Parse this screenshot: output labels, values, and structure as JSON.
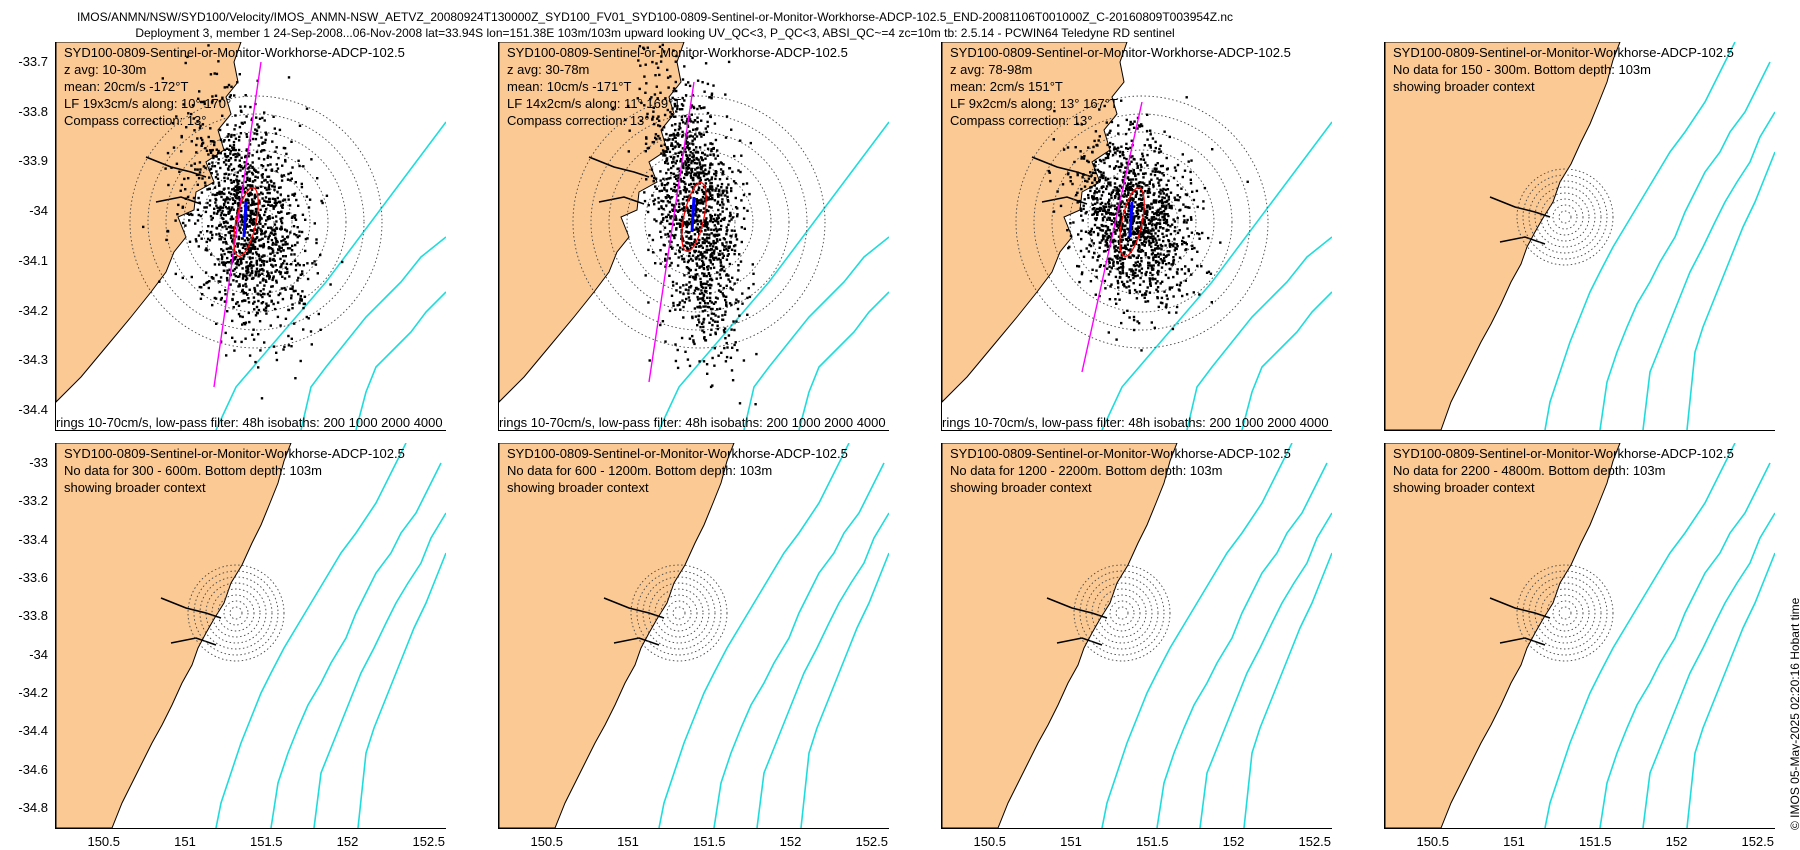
{
  "header": {
    "line1": "IMOS/ANMN/NSW/SYD100/Velocity/IMOS_ANMN-NSW_AETVZ_20080924T130000Z_SYD100_FV01_SYD100-0809-Sentinel-or-Monitor-Workhorse-ADCP-102.5_END-20081106T001000Z_C-20160809T003954Z.nc",
    "line2": "Deployment 3, member 1 24-Sep-2008...06-Nov-2008 lat=33.94S lon=151.38E 103m/103m upward looking UV_QC<3, P_QC<3, ABSI_QC~=4 zc=10m tb: 2.5.14 - PCWIN64 Teledyne RD sentinel"
  },
  "top_axis": {
    "yticks": [
      "-33.7",
      "-33.8",
      "-33.9",
      "-34",
      "-34.1",
      "-34.2",
      "-34.3",
      "-34.4"
    ],
    "yvalues": [
      -33.7,
      -33.8,
      -33.9,
      -34.0,
      -34.1,
      -34.2,
      -34.3,
      -34.4
    ]
  },
  "bottom_axis": {
    "yticks": [
      "-33",
      "-33.2",
      "-33.4",
      "-33.6",
      "-33.8",
      "-34",
      "-34.2",
      "-34.4",
      "-34.6",
      "-34.8"
    ],
    "yvalues": [
      -33.0,
      -33.2,
      -33.4,
      -33.6,
      -33.8,
      -34.0,
      -34.2,
      -34.4,
      -34.6,
      -34.8
    ],
    "xticks": [
      "150.5",
      "151",
      "151.5",
      "152",
      "152.5"
    ],
    "xvalues": [
      150.5,
      151.0,
      151.5,
      152.0,
      152.5
    ]
  },
  "panels": [
    {
      "lines": [
        "SYD100-0809-Sentinel-or-Monitor-Workhorse-ADCP-102.5",
        "z avg: 10-30m",
        "mean: 20cm/s -172°T",
        "LF 19x3cm/s along: 10° 170°",
        "Compass correction: 13°"
      ],
      "footer": "rings 10-70cm/s, low-pass filter: 48h isobaths: 200 1000 2000 4000",
      "type": "data"
    },
    {
      "lines": [
        "SYD100-0809-Sentinel-or-Monitor-Workhorse-ADCP-102.5",
        "z avg: 30-78m",
        "mean: 10cm/s -171°T",
        "LF 14x2cm/s along: 11° 169°T",
        "Compass correction: 13°"
      ],
      "footer": "rings 10-70cm/s, low-pass filter: 48h isobaths: 200 1000 2000 4000",
      "type": "data"
    },
    {
      "lines": [
        "SYD100-0809-Sentinel-or-Monitor-Workhorse-ADCP-102.5",
        "z avg: 78-98m",
        "mean: 2cm/s 151°T",
        "LF 9x2cm/s along: 13° 167°T",
        "Compass correction: 13°"
      ],
      "footer": "rings 10-70cm/s, low-pass filter: 48h isobaths: 200 1000 2000 4000",
      "type": "data"
    },
    {
      "lines": [
        "SYD100-0809-Sentinel-or-Monitor-Workhorse-ADCP-102.5",
        "No data for 150 - 300m. Bottom depth: 103m",
        "showing broader context"
      ],
      "footer": "",
      "type": "context"
    },
    {
      "lines": [
        "SYD100-0809-Sentinel-or-Monitor-Workhorse-ADCP-102.5",
        "No data for 300 - 600m. Bottom depth: 103m",
        "showing broader context"
      ],
      "footer": "",
      "type": "context"
    },
    {
      "lines": [
        "SYD100-0809-Sentinel-or-Monitor-Workhorse-ADCP-102.5",
        "No data for 600 - 1200m. Bottom depth: 103m",
        "showing broader context"
      ],
      "footer": "",
      "type": "context"
    },
    {
      "lines": [
        "SYD100-0809-Sentinel-or-Monitor-Workhorse-ADCP-102.5",
        "No data for 1200 - 2200m. Bottom depth: 103m",
        "showing broader context"
      ],
      "footer": "",
      "type": "context"
    },
    {
      "lines": [
        "SYD100-0809-Sentinel-or-Monitor-Workhorse-ADCP-102.5",
        "No data for 2200 - 4800m. Bottom depth: 103m",
        "showing broader context"
      ],
      "footer": "",
      "type": "context"
    }
  ],
  "credit": "© IMOS 05-May-2025 02:20:16 Hobart time",
  "colors": {
    "land": "#fbc994",
    "isobath": "#1fdcdc",
    "scatter": "#000000",
    "axis_line": "#ff00ff",
    "ellipse": "#ff0000",
    "mean": "#0000ff"
  }
}
